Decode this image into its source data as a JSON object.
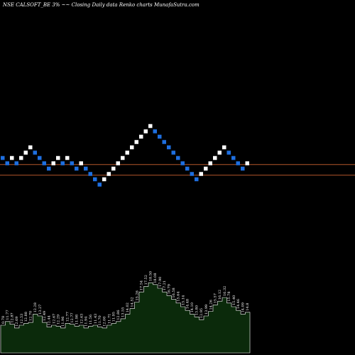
{
  "chart_data": {
    "type": "renko",
    "title": "NSE CALSOFT_BE 3% ~~ Closing Daily data Renko charts MunafaSutra.com",
    "colors": {
      "background": "#000000",
      "up_brick": "#ffffff",
      "down_brick": "#1e6fe0",
      "reference_line": "#b4562a",
      "volume_fill": "#0b2a0b",
      "volume_stroke": "#ffffff"
    },
    "bricks": [
      {
        "level": 0,
        "dir": "down"
      },
      {
        "level": -1,
        "dir": "down"
      },
      {
        "level": 0,
        "dir": "up"
      },
      {
        "level": -1,
        "dir": "down"
      },
      {
        "level": 0,
        "dir": "up"
      },
      {
        "level": 1,
        "dir": "up"
      },
      {
        "level": 2,
        "dir": "up"
      },
      {
        "level": 1,
        "dir": "down"
      },
      {
        "level": 0,
        "dir": "down"
      },
      {
        "level": -1,
        "dir": "down"
      },
      {
        "level": -2,
        "dir": "down"
      },
      {
        "level": -1,
        "dir": "up"
      },
      {
        "level": 0,
        "dir": "up"
      },
      {
        "level": -1,
        "dir": "down"
      },
      {
        "level": 0,
        "dir": "up"
      },
      {
        "level": -1,
        "dir": "down"
      },
      {
        "level": -2,
        "dir": "down"
      },
      {
        "level": -1,
        "dir": "up"
      },
      {
        "level": -2,
        "dir": "down"
      },
      {
        "level": -3,
        "dir": "down"
      },
      {
        "level": -4,
        "dir": "down"
      },
      {
        "level": -5,
        "dir": "down"
      },
      {
        "level": -4,
        "dir": "up"
      },
      {
        "level": -3,
        "dir": "up"
      },
      {
        "level": -2,
        "dir": "up"
      },
      {
        "level": -1,
        "dir": "up"
      },
      {
        "level": 0,
        "dir": "up"
      },
      {
        "level": 1,
        "dir": "up"
      },
      {
        "level": 2,
        "dir": "up"
      },
      {
        "level": 3,
        "dir": "up"
      },
      {
        "level": 4,
        "dir": "up"
      },
      {
        "level": 5,
        "dir": "up"
      },
      {
        "level": 6,
        "dir": "up"
      },
      {
        "level": 5,
        "dir": "down"
      },
      {
        "level": 4,
        "dir": "down"
      },
      {
        "level": 3,
        "dir": "down"
      },
      {
        "level": 2,
        "dir": "down"
      },
      {
        "level": 1,
        "dir": "down"
      },
      {
        "level": 0,
        "dir": "down"
      },
      {
        "level": -1,
        "dir": "down"
      },
      {
        "level": -2,
        "dir": "down"
      },
      {
        "level": -3,
        "dir": "down"
      },
      {
        "level": -4,
        "dir": "down"
      },
      {
        "level": -3,
        "dir": "up"
      },
      {
        "level": -2,
        "dir": "up"
      },
      {
        "level": -1,
        "dir": "up"
      },
      {
        "level": 0,
        "dir": "up"
      },
      {
        "level": 1,
        "dir": "up"
      },
      {
        "level": 2,
        "dir": "up"
      },
      {
        "level": 1,
        "dir": "down"
      },
      {
        "level": 0,
        "dir": "down"
      },
      {
        "level": -1,
        "dir": "down"
      },
      {
        "level": -2,
        "dir": "down"
      },
      {
        "level": -1,
        "dir": "up"
      }
    ],
    "reference_levels": [
      -1,
      -3
    ],
    "volume": [
      {
        "v": 0.3,
        "label": "0.78"
      },
      {
        "v": 0.34,
        "label": "11.77"
      },
      {
        "v": 0.31,
        "label": "12.87"
      },
      {
        "v": 0.27,
        "label": "12.69"
      },
      {
        "v": 0.3,
        "label": "12.53"
      },
      {
        "v": 0.32,
        "label": "12.88"
      },
      {
        "v": 0.33,
        "label": "12.70"
      },
      {
        "v": 0.42,
        "label": "12.28"
      },
      {
        "v": 0.4,
        "label": "13.27"
      },
      {
        "v": 0.33,
        "label": "12.49"
      },
      {
        "v": 0.28,
        "label": "12.44"
      },
      {
        "v": 0.3,
        "label": "12.67"
      },
      {
        "v": 0.29,
        "label": "12.29"
      },
      {
        "v": 0.27,
        "label": "11.96"
      },
      {
        "v": 0.32,
        "label": "12.77"
      },
      {
        "v": 0.31,
        "label": "12.77"
      },
      {
        "v": 0.29,
        "label": "11.98"
      },
      {
        "v": 0.3,
        "label": "12.63"
      },
      {
        "v": 0.27,
        "label": "11.94"
      },
      {
        "v": 0.29,
        "label": "11.56"
      },
      {
        "v": 0.3,
        "label": "11.43"
      },
      {
        "v": 0.28,
        "label": "11.70"
      },
      {
        "v": 0.27,
        "label": "12.00"
      },
      {
        "v": 0.3,
        "label": "11.71"
      },
      {
        "v": 0.32,
        "label": "11.95"
      },
      {
        "v": 0.34,
        "label": "12.86"
      },
      {
        "v": 0.37,
        "label": "13.55"
      },
      {
        "v": 0.42,
        "label": "14.02"
      },
      {
        "v": 0.48,
        "label": "14.52"
      },
      {
        "v": 0.55,
        "label": "15.26"
      },
      {
        "v": 0.66,
        "label": "17.54"
      },
      {
        "v": 0.72,
        "label": "17.52"
      },
      {
        "v": 0.76,
        "label": "18.50"
      },
      {
        "v": 0.74,
        "label": "18.08"
      },
      {
        "v": 0.7,
        "label": "17.90"
      },
      {
        "v": 0.66,
        "label": "17.21"
      },
      {
        "v": 0.62,
        "label": "16.79"
      },
      {
        "v": 0.58,
        "label": "16.58"
      },
      {
        "v": 0.54,
        "label": "15.64"
      },
      {
        "v": 0.5,
        "label": "15.14"
      },
      {
        "v": 0.46,
        "label": "14.48"
      },
      {
        "v": 0.42,
        "label": "14.10"
      },
      {
        "v": 0.39,
        "label": "13.80"
      },
      {
        "v": 0.36,
        "label": "12.95"
      },
      {
        "v": 0.4,
        "label": "13.99"
      },
      {
        "v": 0.45,
        "label": "14.26"
      },
      {
        "v": 0.52,
        "label": "15.57"
      },
      {
        "v": 0.56,
        "label": "16.12"
      },
      {
        "v": 0.6,
        "label": "16.32"
      },
      {
        "v": 0.54,
        "label": "15.78"
      },
      {
        "v": 0.5,
        "label": "15.40"
      },
      {
        "v": 0.46,
        "label": "14.46"
      },
      {
        "v": 0.42,
        "label": "14.09"
      },
      {
        "v": 0.44,
        "label": "14.8"
      }
    ]
  }
}
